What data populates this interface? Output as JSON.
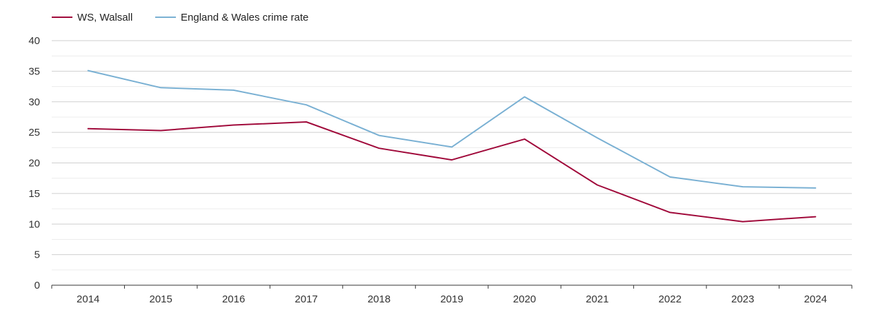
{
  "chart_data": {
    "type": "line",
    "title": "",
    "xlabel": "",
    "ylabel": "",
    "categories": [
      "2014",
      "2015",
      "2016",
      "2017",
      "2018",
      "2019",
      "2020",
      "2021",
      "2022",
      "2023",
      "2024"
    ],
    "ylim": [
      0,
      40
    ],
    "yticks": [
      "0",
      "5",
      "10",
      "15",
      "20",
      "25",
      "30",
      "35",
      "40"
    ],
    "grid": true,
    "legend_position": "top-left",
    "series": [
      {
        "name": "WS, Walsall",
        "color": "#a0093a",
        "values": [
          25.6,
          25.3,
          26.2,
          26.7,
          22.4,
          20.5,
          23.9,
          16.4,
          11.9,
          10.4,
          11.2
        ]
      },
      {
        "name": "England & Wales crime rate",
        "color": "#79b0d3",
        "values": [
          35.1,
          32.3,
          31.9,
          29.5,
          24.5,
          22.6,
          30.8,
          24.1,
          17.7,
          16.1,
          15.9
        ]
      }
    ]
  }
}
